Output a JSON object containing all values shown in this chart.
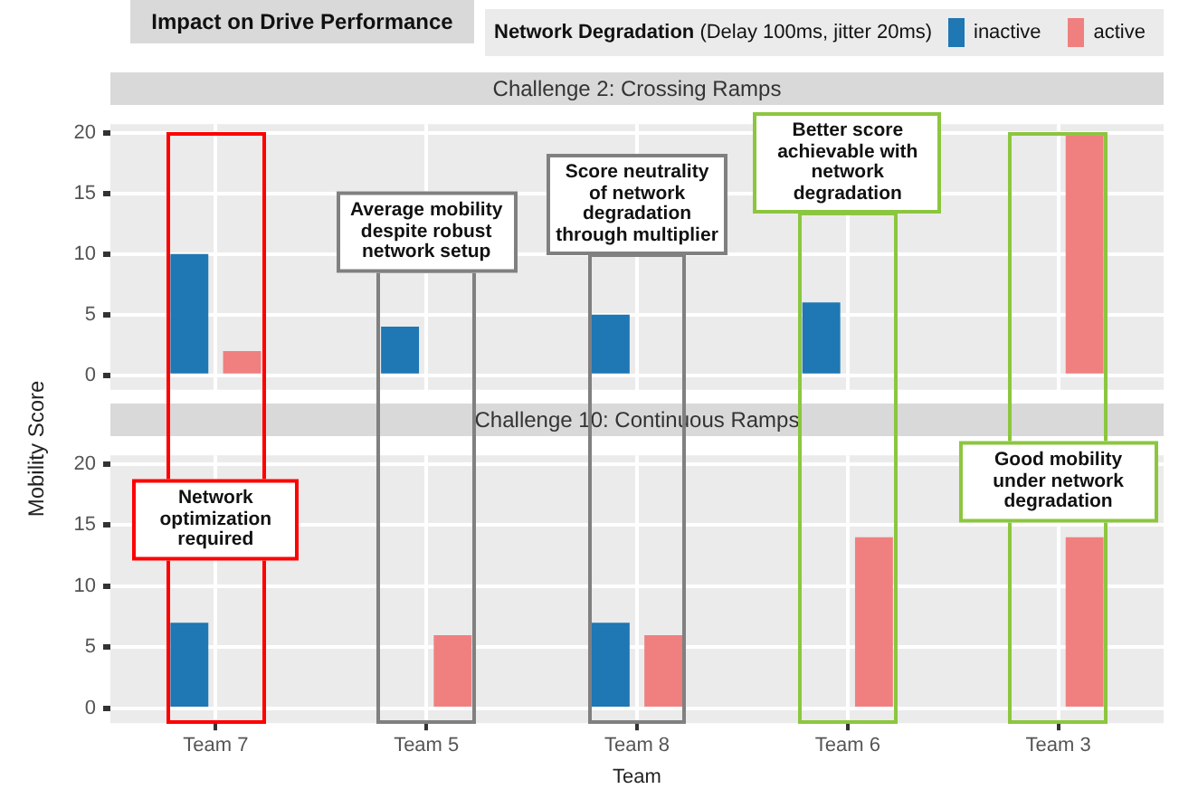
{
  "chart_data": [
    {
      "type": "bar",
      "title": "Challenge 2: Crossing Ramps",
      "ylabel": "Mobility Score",
      "legend_title": "Network Degradation (Delay 100ms, jitter 20ms)",
      "legend": "top",
      "categories": [
        null,
        null,
        null,
        null,
        null
      ],
      "series": [
        {
          "name": "inactive",
          "color": "#1f77b4",
          "values": [
            10,
            4,
            5,
            6,
            null
          ]
        },
        {
          "name": "active",
          "color": "#f08080",
          "values": [
            2,
            null,
            null,
            null,
            20
          ]
        }
      ],
      "ylim": [
        -1.2,
        20.7
      ],
      "yticks": [
        0,
        5,
        10,
        15,
        20
      ],
      "grid": true,
      "tick_labels": "y",
      "annotations": [
        "Impact on Drive Performance",
        "Average mobility despite robust network setup",
        "Score neutrality of network degradation through multiplier",
        "Better score achievable with network degradation"
      ]
    },
    {
      "type": "bar",
      "title": "Challenge 10: Continuous Ramps",
      "xlabel": "Team",
      "categories": [
        "Team 7",
        "Team 5",
        "Team 8",
        "Team 6",
        "Team 3"
      ],
      "series": [
        {
          "color": "#1f77b4",
          "values": [
            7,
            null,
            7,
            null,
            null
          ]
        },
        {
          "color": "#f08080",
          "values": [
            null,
            6,
            6,
            14,
            14
          ]
        }
      ],
      "ylim": [
        -1.2,
        20.7
      ],
      "yticks": [
        0,
        5,
        10,
        15,
        20
      ],
      "grid": true,
      "annotations": [
        "Network optimization required",
        "Good mobility under network degradation"
      ]
    }
  ]
}
